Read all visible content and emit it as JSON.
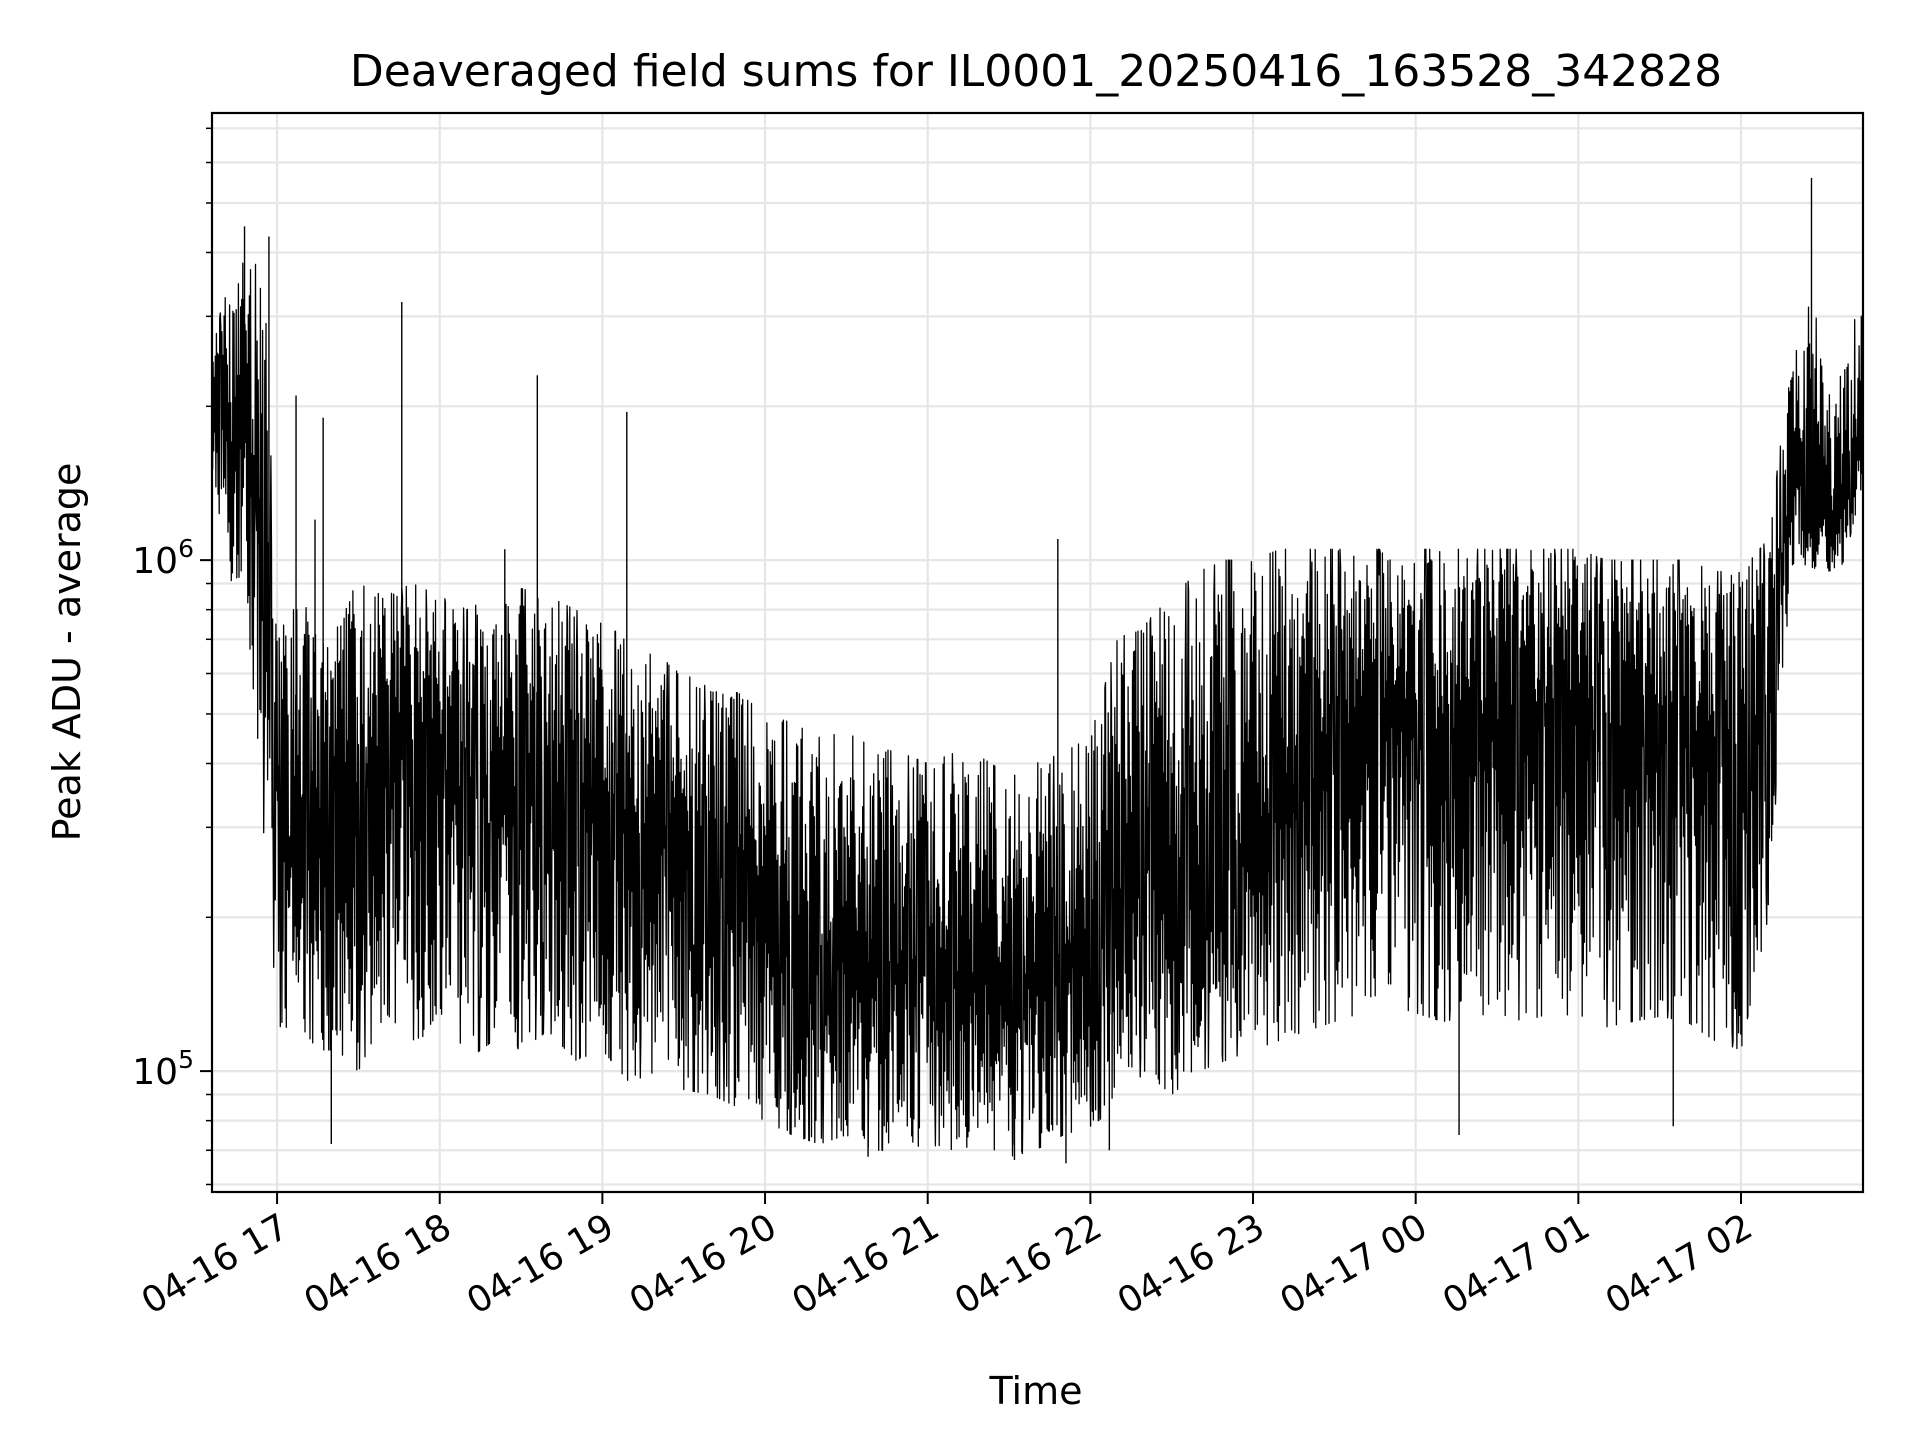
{
  "chart_data": {
    "type": "line",
    "title": "Deaveraged field sums for IL0001_20250416_163528_342828",
    "xlabel": "Time",
    "ylabel": "Peak ADU - average",
    "yscale": "log",
    "ylim": [
      58000,
      7500000
    ],
    "xlim": [
      "2025-04-16 16:36",
      "2025-04-17 02:45"
    ],
    "x_ticks": [
      {
        "t": "2025-04-16 17:00",
        "label": "04-16 17"
      },
      {
        "t": "2025-04-16 18:00",
        "label": "04-16 18"
      },
      {
        "t": "2025-04-16 19:00",
        "label": "04-16 19"
      },
      {
        "t": "2025-04-16 20:00",
        "label": "04-16 20"
      },
      {
        "t": "2025-04-16 21:00",
        "label": "04-16 21"
      },
      {
        "t": "2025-04-16 22:00",
        "label": "04-16 22"
      },
      {
        "t": "2025-04-16 23:00",
        "label": "04-16 23"
      },
      {
        "t": "2025-04-17 00:00",
        "label": "04-17 00"
      },
      {
        "t": "2025-04-17 01:00",
        "label": "04-17 01"
      },
      {
        "t": "2025-04-17 02:00",
        "label": "04-17 02"
      }
    ],
    "y_ticks": [
      {
        "value": 100000,
        "base": "10",
        "exponent": "5"
      },
      {
        "value": 1000000,
        "base": "10",
        "exponent": "6"
      }
    ],
    "grid": true,
    "line_color": "#000000",
    "series": [
      {
        "x": [
          "2025-04-16 16:36",
          "2025-04-16 16:40",
          "2025-04-16 16:44",
          "2025-04-16 16:48",
          "2025-04-16 16:52",
          "2025-04-16 16:56",
          "2025-04-16 17:00",
          "2025-04-16 17:05",
          "2025-04-16 17:10",
          "2025-04-16 17:15",
          "2025-04-16 17:20",
          "2025-04-16 17:30",
          "2025-04-16 17:40",
          "2025-04-16 17:50",
          "2025-04-16 18:00",
          "2025-04-16 18:10",
          "2025-04-16 18:20",
          "2025-04-16 18:30",
          "2025-04-16 18:40",
          "2025-04-16 18:50",
          "2025-04-16 19:00",
          "2025-04-16 19:10",
          "2025-04-16 19:20",
          "2025-04-16 19:30",
          "2025-04-16 19:40",
          "2025-04-16 19:50",
          "2025-04-16 20:00",
          "2025-04-16 20:10",
          "2025-04-16 20:20",
          "2025-04-16 20:30",
          "2025-04-16 20:40",
          "2025-04-16 20:50",
          "2025-04-16 21:00",
          "2025-04-16 21:10",
          "2025-04-16 21:20",
          "2025-04-16 21:30",
          "2025-04-16 21:40",
          "2025-04-16 21:50",
          "2025-04-16 22:00",
          "2025-04-16 22:10",
          "2025-04-16 22:20",
          "2025-04-16 22:30",
          "2025-04-16 22:40",
          "2025-04-16 22:50",
          "2025-04-16 23:00",
          "2025-04-16 23:10",
          "2025-04-16 23:20",
          "2025-04-16 23:30",
          "2025-04-16 23:40",
          "2025-04-16 23:50",
          "2025-04-17 00:00",
          "2025-04-17 00:10",
          "2025-04-17 00:20",
          "2025-04-17 00:30",
          "2025-04-17 00:40",
          "2025-04-17 00:50",
          "2025-04-17 01:00",
          "2025-04-17 01:10",
          "2025-04-17 01:20",
          "2025-04-17 01:30",
          "2025-04-17 01:40",
          "2025-04-17 01:50",
          "2025-04-17 02:00",
          "2025-04-17 02:10",
          "2025-04-17 02:18",
          "2025-04-17 02:22",
          "2025-04-17 02:26",
          "2025-04-17 02:30",
          "2025-04-17 02:34",
          "2025-04-17 02:38",
          "2025-04-17 02:42",
          "2025-04-17 02:45"
        ],
        "y": [
          1800000,
          2000000,
          1500000,
          2500000,
          1200000,
          1000000,
          400000,
          250000,
          350000,
          300000,
          400000,
          350000,
          450000,
          380000,
          400000,
          330000,
          380000,
          350000,
          380000,
          330000,
          350000,
          280000,
          300000,
          260000,
          250000,
          230000,
          210000,
          180000,
          170000,
          180000,
          160000,
          160000,
          160000,
          150000,
          155000,
          150000,
          150000,
          160000,
          170000,
          200000,
          260000,
          210000,
          250000,
          270000,
          280000,
          320000,
          350000,
          420000,
          480000,
          520000,
          500000,
          450000,
          470000,
          480000,
          460000,
          500000,
          480000,
          450000,
          470000,
          480000,
          470000,
          430000,
          420000,
          460000,
          1400000,
          1500000,
          1200000,
          1300000,
          1100000,
          1300000,
          1600000,
          1900000
        ],
        "y_low": [
          1300000,
          1200000,
          800000,
          900000,
          500000,
          250000,
          130000,
          100000,
          120000,
          110000,
          110000,
          100000,
          130000,
          115000,
          120000,
          105000,
          115000,
          110000,
          120000,
          105000,
          110000,
          95000,
          100000,
          92000,
          90000,
          85000,
          80000,
          75000,
          72000,
          75000,
          70000,
          70000,
          72000,
          70000,
          72000,
          68000,
          70000,
          75000,
          78000,
          85000,
          100000,
          90000,
          100000,
          105000,
          110000,
          115000,
          120000,
          125000,
          130000,
          135000,
          130000,
          125000,
          128000,
          130000,
          125000,
          130000,
          128000,
          122000,
          125000,
          128000,
          125000,
          115000,
          110000,
          200000,
          900000,
          1000000,
          950000,
          1000000,
          900000,
          1000000,
          1200000,
          1400000
        ],
        "y_high": [
          2600000,
          3200000,
          3500000,
          4000000,
          3800000,
          3000000,
          700000,
          800000,
          800000,
          850000,
          800000,
          900000,
          850000,
          900000,
          850000,
          800000,
          850000,
          880000,
          850000,
          800000,
          750000,
          700000,
          650000,
          600000,
          560000,
          550000,
          500000,
          480000,
          450000,
          460000,
          430000,
          420000,
          400000,
          420000,
          410000,
          380000,
          400000,
          420000,
          450000,
          700000,
          750000,
          850000,
          950000,
          1000000,
          1000000,
          1050000,
          1050000,
          1050000,
          1050000,
          1050000,
          1050000,
          1050000,
          1050000,
          1050000,
          1050000,
          1050000,
          1050000,
          1000000,
          1000000,
          1000000,
          1000000,
          950000,
          950000,
          1100000,
          2300000,
          2800000,
          3400000,
          2500000,
          2000000,
          2500000,
          3000000,
          3000000
        ]
      }
    ],
    "spikes": [
      {
        "t": "2025-04-16 16:48",
        "value": 4500000
      },
      {
        "t": "2025-04-16 16:57",
        "value": 4300000
      },
      {
        "t": "2025-04-16 17:07",
        "value": 2100000
      },
      {
        "t": "2025-04-16 17:14",
        "value": 1200000
      },
      {
        "t": "2025-04-16 17:17",
        "value": 1900000
      },
      {
        "t": "2025-04-16 17:46",
        "value": 3200000
      },
      {
        "t": "2025-04-16 18:24",
        "value": 1050000
      },
      {
        "t": "2025-04-16 18:36",
        "value": 2300000
      },
      {
        "t": "2025-04-16 19:09",
        "value": 1950000
      },
      {
        "t": "2025-04-16 21:48",
        "value": 1100000
      },
      {
        "t": "2025-04-17 02:26",
        "value": 5600000
      },
      {
        "t": "2025-04-16 17:20",
        "value": 72000
      },
      {
        "t": "2025-04-16 20:38",
        "value": 68000
      },
      {
        "t": "2025-04-16 21:32",
        "value": 67000
      },
      {
        "t": "2025-04-16 21:51",
        "value": 66000
      },
      {
        "t": "2025-04-16 22:07",
        "value": 70000
      },
      {
        "t": "2025-04-17 00:16",
        "value": 75000
      },
      {
        "t": "2025-04-17 01:35",
        "value": 78000
      }
    ]
  }
}
